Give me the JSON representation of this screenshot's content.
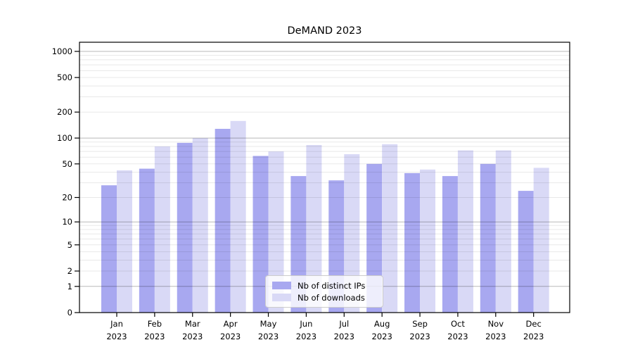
{
  "figure": {
    "background": "#ffffff"
  },
  "chart_data": {
    "type": "bar",
    "title": "DeMAND 2023",
    "categories": [
      "Jan",
      "Feb",
      "Mar",
      "Apr",
      "May",
      "Jun",
      "Jul",
      "Aug",
      "Sep",
      "Oct",
      "Nov",
      "Dec"
    ],
    "x_tick_year": "2023",
    "series": [
      {
        "name": "Nb of distinct IPs",
        "color": "#a8a8f0",
        "values": [
          28,
          44,
          88,
          128,
          62,
          36,
          32,
          50,
          39,
          36,
          50,
          24
        ]
      },
      {
        "name": "Nb of downloads",
        "color": "#d9d9f6",
        "values": [
          42,
          80,
          100,
          158,
          70,
          83,
          65,
          85,
          43,
          72,
          72,
          45
        ]
      }
    ],
    "xlabel": "",
    "ylabel": "",
    "yscale": "log1p",
    "y_ticks": [
      1000,
      500,
      200,
      100,
      50,
      20,
      10,
      5,
      2,
      1,
      0
    ],
    "ylim": [
      0,
      1270
    ],
    "grid": "major and minor horizontal, drawn over bars",
    "legend": {
      "position": "lower center"
    }
  },
  "colors": {
    "bar_dark": "#a8a8f0",
    "bar_light": "#d9d9f6",
    "grid_major": "#b8b8b8",
    "grid_minor": "#e8e8e8",
    "spine": "#000000",
    "text": "#000000"
  }
}
